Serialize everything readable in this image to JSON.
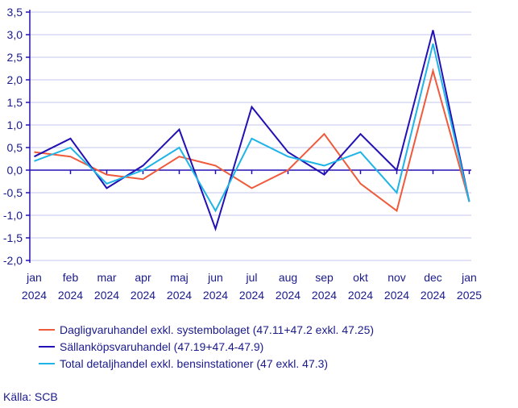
{
  "chart_data": {
    "type": "line",
    "categories": [
      "jan 2024",
      "feb 2024",
      "mar 2024",
      "apr 2024",
      "maj 2024",
      "jun 2024",
      "jul 2024",
      "aug 2024",
      "sep 2024",
      "okt 2024",
      "nov 2024",
      "dec 2024",
      "jan 2025"
    ],
    "category_lines": [
      [
        "jan",
        "2024"
      ],
      [
        "feb",
        "2024"
      ],
      [
        "mar",
        "2024"
      ],
      [
        "apr",
        "2024"
      ],
      [
        "maj",
        "2024"
      ],
      [
        "jun",
        "2024"
      ],
      [
        "jul",
        "2024"
      ],
      [
        "aug",
        "2024"
      ],
      [
        "sep",
        "2024"
      ],
      [
        "okt",
        "2024"
      ],
      [
        "nov",
        "2024"
      ],
      [
        "dec",
        "2024"
      ],
      [
        "jan",
        "2025"
      ]
    ],
    "ylim": [
      -2.0,
      3.5
    ],
    "yticks": [
      "3,5",
      "3,0",
      "2,5",
      "2,0",
      "1,5",
      "1,0",
      "0,5",
      "0,0",
      "-0,5",
      "-1,0",
      "-1,5",
      "-2,0"
    ],
    "ytick_values": [
      3.5,
      3.0,
      2.5,
      2.0,
      1.5,
      1.0,
      0.5,
      0.0,
      -0.5,
      -1.0,
      -1.5,
      -2.0
    ],
    "grid": true,
    "legend_position": "bottom",
    "series": [
      {
        "name": "Dagligvaruhandel exkl. systembolaget (47.11+47.2 exkl. 47.25)",
        "color": "#f05a3c",
        "values": [
          0.4,
          0.3,
          -0.1,
          -0.2,
          0.3,
          0.1,
          -0.4,
          0.0,
          0.8,
          -0.3,
          -0.9,
          2.2,
          -0.7
        ]
      },
      {
        "name": "Sällanköpsvaruhandel (47.19+47.4-47.9)",
        "color": "#2211b4",
        "values": [
          0.3,
          0.7,
          -0.4,
          0.1,
          0.9,
          -1.3,
          1.4,
          0.4,
          -0.1,
          0.8,
          0.0,
          3.1,
          -0.7
        ]
      },
      {
        "name": "Total detaljhandel exkl. bensinstationer (47 exkl. 47.3)",
        "color": "#1eb4e6",
        "values": [
          0.2,
          0.5,
          -0.3,
          0.0,
          0.5,
          -0.9,
          0.7,
          0.3,
          0.1,
          0.4,
          -0.5,
          2.8,
          -0.7
        ]
      }
    ]
  },
  "source": "Källa: SCB"
}
